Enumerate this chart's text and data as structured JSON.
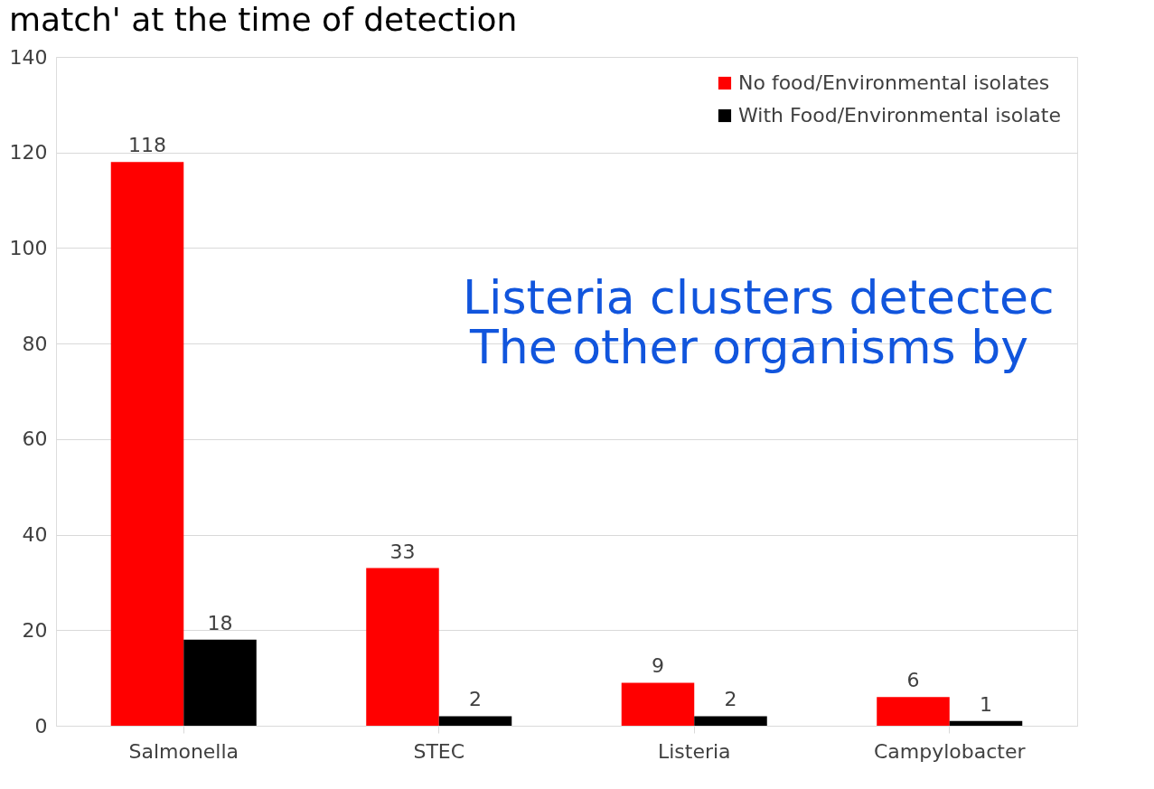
{
  "chart_data": {
    "type": "bar",
    "title": "match' at the time of detection",
    "categories": [
      "Salmonella",
      "STEC",
      "Listeria",
      "Campylobacter"
    ],
    "series": [
      {
        "name": "No food/Environmental isolates",
        "color": "#ff0000",
        "values": [
          118,
          33,
          9,
          6
        ]
      },
      {
        "name": "With Food/Environmental isolate",
        "color": "#000000",
        "values": [
          18,
          2,
          2,
          1
        ]
      }
    ],
    "ylim": [
      0,
      140
    ],
    "yticks": [
      0,
      20,
      40,
      60,
      80,
      100,
      120,
      140
    ],
    "grid": "y",
    "legend": "top right",
    "data_labels": true,
    "annotations": [
      "Listeria clusters detectec",
      "The other organisms by"
    ]
  }
}
